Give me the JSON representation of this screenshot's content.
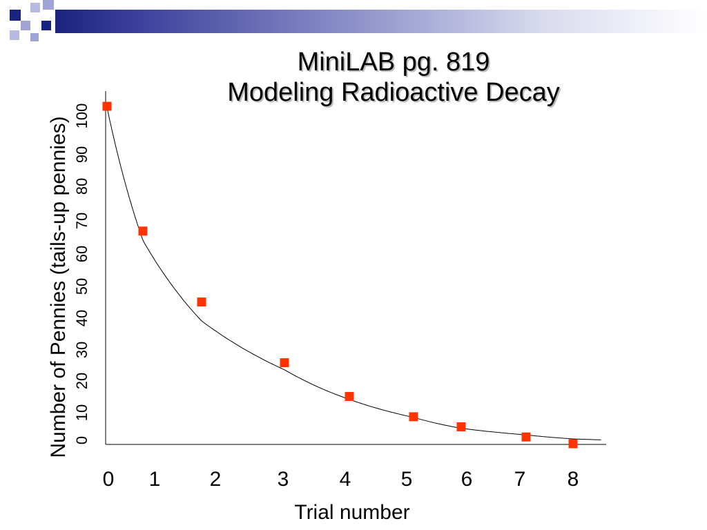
{
  "slide": {
    "title_line1": "MiniLAB pg. 819",
    "title_line2": "Modeling Radioactive Decay",
    "accent_colors": {
      "navy": "#1a237e",
      "lavender": "#9fa3d6",
      "marker": "#ff3300"
    }
  },
  "chart_data": {
    "type": "scatter",
    "title": "MiniLAB pg. 819 Modeling Radioactive Decay",
    "xlabel": "Trial number",
    "ylabel": "Number of Pennies (tails-up pennies)",
    "x_tick_labels": [
      "0",
      "1",
      "2",
      "3",
      "4",
      "5",
      "6",
      "7",
      "8"
    ],
    "y_tick_labels": [
      "0",
      "10",
      "20",
      "30",
      "40",
      "50",
      "60",
      "70",
      "80",
      "90",
      "100"
    ],
    "ylim": [
      0,
      100
    ],
    "grid": false,
    "legend": "none",
    "trendline": "exponential decay curve",
    "series": [
      {
        "marker": "square",
        "color": "#ff3300",
        "points": [
          {
            "x": 0,
            "y": 100
          },
          {
            "x": 1,
            "y": 63
          },
          {
            "x": 2,
            "y": 42
          },
          {
            "x": 3,
            "y": 24
          },
          {
            "x": 4,
            "y": 14
          },
          {
            "x": 5,
            "y": 8
          },
          {
            "x": 6,
            "y": 5
          },
          {
            "x": 7,
            "y": 2
          },
          {
            "x": 8,
            "y": 0
          }
        ]
      }
    ]
  }
}
